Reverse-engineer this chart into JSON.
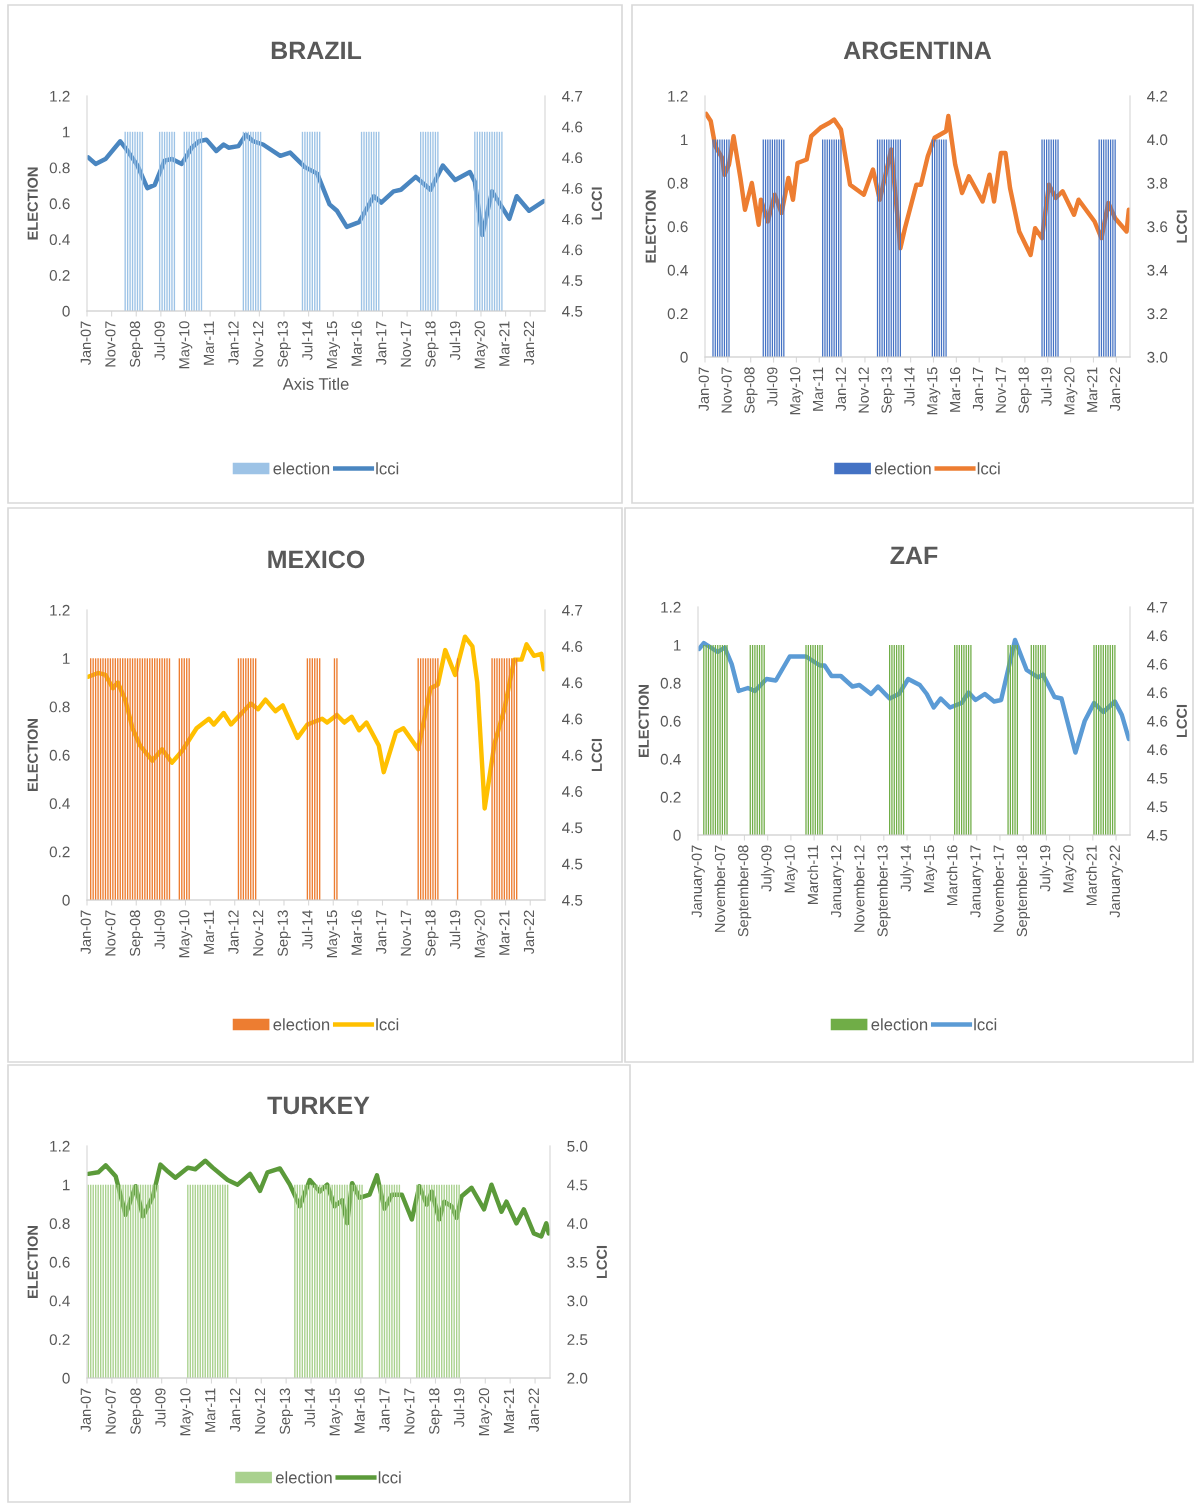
{
  "chart_data": [
    {
      "type": "bar",
      "title": "BRAZIL",
      "xlabel": "Axis Title",
      "ylabel": "ELECTION",
      "y2label": "LCCI",
      "legend": "bottom",
      "xlim": [
        "2007-01",
        "2022-07"
      ],
      "xticks": [
        {
          "value": "2007-01",
          "label": "Jan-07"
        },
        {
          "value": "2007-11",
          "label": "Nov-07"
        },
        {
          "value": "2008-09",
          "label": "Sep-08"
        },
        {
          "value": "2009-07",
          "label": "Jul-09"
        },
        {
          "value": "2010-05",
          "label": "May-10"
        },
        {
          "value": "2011-03",
          "label": "Mar-11"
        },
        {
          "value": "2012-01",
          "label": "Jan-12"
        },
        {
          "value": "2012-11",
          "label": "Nov-12"
        },
        {
          "value": "2013-09",
          "label": "Sep-13"
        },
        {
          "value": "2014-07",
          "label": "Jul-14"
        },
        {
          "value": "2015-05",
          "label": "May-15"
        },
        {
          "value": "2016-03",
          "label": "Mar-16"
        },
        {
          "value": "2017-01",
          "label": "Jan-17"
        },
        {
          "value": "2017-11",
          "label": "Nov-17"
        },
        {
          "value": "2018-09",
          "label": "Sep-18"
        },
        {
          "value": "2019-07",
          "label": "Jul-19"
        },
        {
          "value": "2020-05",
          "label": "May-20"
        },
        {
          "value": "2021-03",
          "label": "Mar-21"
        },
        {
          "value": "2022-01",
          "label": "Jan-22"
        }
      ],
      "ylim": [
        0,
        1.2
      ],
      "yticks": [
        0,
        0.2,
        0.4,
        0.6,
        0.8,
        1,
        1.2
      ],
      "y2lim": [
        4.52,
        4.653
      ],
      "y2ticks": [
        {
          "value": 4.52,
          "label": "4.5"
        },
        {
          "value": 4.539,
          "label": "4.5"
        },
        {
          "value": 4.558,
          "label": "4.6"
        },
        {
          "value": 4.577,
          "label": "4.6"
        },
        {
          "value": 4.596,
          "label": "4.6"
        },
        {
          "value": 4.615,
          "label": "4.6"
        },
        {
          "value": 4.634,
          "label": "4.6"
        },
        {
          "value": 4.653,
          "label": "4.7"
        }
      ],
      "series": [
        {
          "name": "election",
          "color": "#9dc3e6",
          "x": [
            "2008-04",
            "2008-05",
            "2008-06",
            "2008-07",
            "2008-08",
            "2008-09",
            "2008-10",
            "2008-11",
            "2009-06",
            "2009-07",
            "2009-08",
            "2009-09",
            "2009-10",
            "2009-11",
            "2009-12",
            "2010-04",
            "2010-05",
            "2010-06",
            "2010-07",
            "2010-08",
            "2010-09",
            "2010-10",
            "2010-11",
            "2012-04",
            "2012-05",
            "2012-06",
            "2012-07",
            "2012-08",
            "2012-09",
            "2012-10",
            "2012-11",
            "2014-04",
            "2014-05",
            "2014-06",
            "2014-07",
            "2014-08",
            "2014-09",
            "2014-10",
            "2014-11",
            "2016-04",
            "2016-05",
            "2016-06",
            "2016-07",
            "2016-08",
            "2016-09",
            "2016-10",
            "2016-11",
            "2018-04",
            "2018-05",
            "2018-06",
            "2018-07",
            "2018-08",
            "2018-09",
            "2018-10",
            "2018-11",
            "2020-02",
            "2020-03",
            "2020-04",
            "2020-05",
            "2020-06",
            "2020-07",
            "2020-08",
            "2020-09",
            "2020-10",
            "2020-11",
            "2020-12",
            "2021-01"
          ],
          "values": [
            1,
            1,
            1,
            1,
            1,
            1,
            1,
            1,
            1,
            1,
            1,
            1,
            1,
            1,
            1,
            1,
            1,
            1,
            1,
            1,
            1,
            1,
            1,
            1,
            1,
            1,
            1,
            1,
            1,
            1,
            1,
            1,
            1,
            1,
            1,
            1,
            1,
            1,
            1,
            1,
            1,
            1,
            1,
            1,
            1,
            1,
            1,
            1,
            1,
            1,
            1,
            1,
            1,
            1,
            1,
            1,
            1,
            1,
            1,
            1,
            1,
            1,
            1,
            1,
            1,
            1,
            1
          ]
        },
        {
          "name": "lcci",
          "type": "line",
          "axis": "y2",
          "color": "#4a86c0",
          "x": [
            "2007-01",
            "2007-04",
            "2007-08",
            "2008-02",
            "2008-05",
            "2008-09",
            "2009-01",
            "2009-04",
            "2009-08",
            "2009-11",
            "2010-03",
            "2010-07",
            "2010-10",
            "2011-01",
            "2011-05",
            "2011-08",
            "2011-10",
            "2012-02",
            "2012-05",
            "2012-08",
            "2012-12",
            "2013-07",
            "2013-11",
            "2014-05",
            "2014-10",
            "2015-03",
            "2015-06",
            "2015-10",
            "2016-03",
            "2016-09",
            "2016-12",
            "2017-05",
            "2017-08",
            "2018-02",
            "2018-08",
            "2019-01",
            "2019-06",
            "2019-12",
            "2020-02",
            "2020-05",
            "2020-09",
            "2021-04",
            "2021-07",
            "2021-12",
            "2022-06"
          ],
          "values": [
            4.615,
            4.611,
            4.614,
            4.625,
            4.619,
            4.61,
            4.596,
            4.598,
            4.613,
            4.614,
            4.611,
            4.621,
            4.625,
            4.626,
            4.619,
            4.623,
            4.621,
            4.622,
            4.629,
            4.625,
            4.623,
            4.616,
            4.618,
            4.609,
            4.605,
            4.586,
            4.582,
            4.572,
            4.575,
            4.591,
            4.587,
            4.594,
            4.595,
            4.603,
            4.595,
            4.61,
            4.601,
            4.606,
            4.6,
            4.567,
            4.594,
            4.577,
            4.591,
            4.582,
            4.588
          ]
        }
      ]
    },
    {
      "type": "bar",
      "title": "ARGENTINA",
      "ylabel": "ELECTION",
      "y2label": "LCCI",
      "legend": "bottom",
      "xlim": [
        "2007-01",
        "2022-07"
      ],
      "xticks": [
        {
          "value": "2007-01",
          "label": "Jan-07"
        },
        {
          "value": "2007-11",
          "label": "Nov-07"
        },
        {
          "value": "2008-09",
          "label": "Sep-08"
        },
        {
          "value": "2009-07",
          "label": "Jul-09"
        },
        {
          "value": "2010-05",
          "label": "May-10"
        },
        {
          "value": "2011-03",
          "label": "Mar-11"
        },
        {
          "value": "2012-01",
          "label": "Jan-12"
        },
        {
          "value": "2012-11",
          "label": "Nov-12"
        },
        {
          "value": "2013-09",
          "label": "Sep-13"
        },
        {
          "value": "2014-07",
          "label": "Jul-14"
        },
        {
          "value": "2015-05",
          "label": "May-15"
        },
        {
          "value": "2016-03",
          "label": "Mar-16"
        },
        {
          "value": "2017-01",
          "label": "Jan-17"
        },
        {
          "value": "2017-11",
          "label": "Nov-17"
        },
        {
          "value": "2018-09",
          "label": "Sep-18"
        },
        {
          "value": "2019-07",
          "label": "Jul-19"
        },
        {
          "value": "2020-05",
          "label": "May-20"
        },
        {
          "value": "2021-03",
          "label": "Mar-21"
        },
        {
          "value": "2022-01",
          "label": "Jan-22"
        }
      ],
      "ylim": [
        0,
        1.2
      ],
      "yticks": [
        0,
        0.2,
        0.4,
        0.6,
        0.8,
        1,
        1.2
      ],
      "y2lim": [
        3.0,
        4.2
      ],
      "y2ticks": [
        {
          "value": 3.0,
          "label": "3.0"
        },
        3.2,
        3.4,
        3.6,
        3.8,
        {
          "value": 4.0,
          "label": "4.0"
        },
        4.2
      ],
      "series": [
        {
          "name": "election",
          "color": "#4472c4",
          "x": [
            "2007-04",
            "2007-05",
            "2007-06",
            "2007-07",
            "2007-08",
            "2007-09",
            "2007-10",
            "2007-11",
            "2009-02",
            "2009-03",
            "2009-04",
            "2009-05",
            "2009-06",
            "2009-07",
            "2009-08",
            "2009-09",
            "2009-10",
            "2009-11",
            "2011-04",
            "2011-05",
            "2011-06",
            "2011-07",
            "2011-08",
            "2011-09",
            "2011-10",
            "2011-11",
            "2011-12",
            "2013-04",
            "2013-05",
            "2013-06",
            "2013-07",
            "2013-08",
            "2013-09",
            "2013-10",
            "2013-11",
            "2013-12",
            "2014-01",
            "2014-02",
            "2015-04",
            "2015-05",
            "2015-06",
            "2015-07",
            "2015-08",
            "2015-09",
            "2015-10",
            "2019-04",
            "2019-05",
            "2019-06",
            "2019-07",
            "2019-08",
            "2019-09",
            "2019-10",
            "2019-11",
            "2021-05",
            "2021-06",
            "2021-07",
            "2021-08",
            "2021-09",
            "2021-10",
            "2021-11",
            "2021-12"
          ],
          "values": [
            1,
            1,
            1,
            1,
            1,
            1,
            1,
            1,
            1,
            1,
            1,
            1,
            1,
            1,
            1,
            1,
            1,
            1,
            1,
            1,
            1,
            1,
            1,
            1,
            1,
            1,
            1,
            1,
            1,
            1,
            1,
            1,
            1,
            1,
            1,
            1,
            1,
            1,
            1,
            1,
            1,
            1,
            1,
            1,
            1,
            1,
            1,
            1,
            1,
            1,
            1,
            1,
            1,
            1,
            1,
            1,
            1,
            1,
            1,
            1,
            1
          ]
        },
        {
          "name": "lcci",
          "type": "line",
          "axis": "y2",
          "color": "#ed7d31",
          "x": [
            "2007-01",
            "2007-03",
            "2007-05",
            "2007-08",
            "2007-09",
            "2007-11",
            "2008-01",
            "2008-04",
            "2008-06",
            "2008-09",
            "2008-12",
            "2009-01",
            "2009-04",
            "2009-07",
            "2009-10",
            "2010-01",
            "2010-03",
            "2010-05",
            "2010-09",
            "2010-11",
            "2011-03",
            "2011-07",
            "2011-09",
            "2011-12",
            "2012-04",
            "2012-10",
            "2013-02",
            "2013-05",
            "2013-10",
            "2014-02",
            "2014-04",
            "2014-09",
            "2014-11",
            "2015-02",
            "2015-05",
            "2015-10",
            "2015-11",
            "2016-02",
            "2016-05",
            "2016-08",
            "2017-02",
            "2017-05",
            "2017-07",
            "2017-10",
            "2017-12",
            "2018-02",
            "2018-06",
            "2018-11",
            "2019-01",
            "2019-04",
            "2019-07",
            "2019-10",
            "2020-01",
            "2020-06",
            "2020-08",
            "2021-03",
            "2021-06",
            "2021-09",
            "2021-12",
            "2022-05",
            "2022-06"
          ],
          "values": [
            4.118,
            4.085,
            3.969,
            3.915,
            3.838,
            3.885,
            4.015,
            3.823,
            3.677,
            3.8,
            3.608,
            3.723,
            3.623,
            3.746,
            3.662,
            3.823,
            3.723,
            3.892,
            3.908,
            4.015,
            4.054,
            4.077,
            4.092,
            4.046,
            3.792,
            3.746,
            3.862,
            3.723,
            3.954,
            3.5,
            3.592,
            3.792,
            3.792,
            3.923,
            4.008,
            4.038,
            4.108,
            3.885,
            3.754,
            3.831,
            3.715,
            3.838,
            3.715,
            3.938,
            3.938,
            3.777,
            3.577,
            3.469,
            3.592,
            3.546,
            3.792,
            3.731,
            3.762,
            3.654,
            3.723,
            3.623,
            3.546,
            3.708,
            3.638,
            3.577,
            3.677
          ]
        }
      ]
    },
    {
      "type": "bar",
      "title": "MEXICO",
      "ylabel": "ELECTION",
      "y2label": "LCCI",
      "legend": "bottom",
      "xlim": [
        "2007-01",
        "2022-07"
      ],
      "xticks": [
        {
          "value": "2007-01",
          "label": "Jan-07"
        },
        {
          "value": "2007-11",
          "label": "Nov-07"
        },
        {
          "value": "2008-09",
          "label": "Sep-08"
        },
        {
          "value": "2009-07",
          "label": "Jul-09"
        },
        {
          "value": "2010-05",
          "label": "May-10"
        },
        {
          "value": "2011-03",
          "label": "Mar-11"
        },
        {
          "value": "2012-01",
          "label": "Jan-12"
        },
        {
          "value": "2012-11",
          "label": "Nov-12"
        },
        {
          "value": "2013-09",
          "label": "Sep-13"
        },
        {
          "value": "2014-07",
          "label": "Jul-14"
        },
        {
          "value": "2015-05",
          "label": "May-15"
        },
        {
          "value": "2016-03",
          "label": "Mar-16"
        },
        {
          "value": "2017-01",
          "label": "Jan-17"
        },
        {
          "value": "2017-11",
          "label": "Nov-17"
        },
        {
          "value": "2018-09",
          "label": "Sep-18"
        },
        {
          "value": "2019-07",
          "label": "Jul-19"
        },
        {
          "value": "2020-05",
          "label": "May-20"
        },
        {
          "value": "2021-03",
          "label": "Mar-21"
        },
        {
          "value": "2022-01",
          "label": "Jan-22"
        }
      ],
      "ylim": [
        0,
        1.2
      ],
      "yticks": [
        0,
        0.2,
        0.4,
        0.6,
        0.8,
        1,
        1.2
      ],
      "y2lim": [
        4.5,
        4.652
      ],
      "y2ticks": [
        {
          "value": 4.5,
          "label": "4.5"
        },
        {
          "value": 4.519,
          "label": "4.5"
        },
        {
          "value": 4.538,
          "label": "4.5"
        },
        {
          "value": 4.557,
          "label": "4.6"
        },
        {
          "value": 4.576,
          "label": "4.6"
        },
        {
          "value": 4.595,
          "label": "4.6"
        },
        {
          "value": 4.614,
          "label": "4.6"
        },
        {
          "value": 4.633,
          "label": "4.6"
        },
        {
          "value": 4.652,
          "label": "4.7"
        }
      ],
      "series": [
        {
          "name": "election",
          "color": "#ed7d31",
          "x": [
            "2007-02",
            "2007-03",
            "2007-04",
            "2007-05",
            "2007-06",
            "2007-07",
            "2007-08",
            "2007-09",
            "2007-10",
            "2007-11",
            "2007-12",
            "2008-01",
            "2008-02",
            "2008-03",
            "2008-04",
            "2008-05",
            "2008-06",
            "2008-07",
            "2008-08",
            "2008-09",
            "2008-10",
            "2008-11",
            "2008-12",
            "2009-01",
            "2009-02",
            "2009-03",
            "2009-04",
            "2009-05",
            "2009-06",
            "2009-07",
            "2009-08",
            "2009-09",
            "2009-10",
            "2010-02",
            "2010-03",
            "2010-04",
            "2010-05",
            "2010-06",
            "2012-02",
            "2012-03",
            "2012-04",
            "2012-05",
            "2012-06",
            "2012-07",
            "2012-08",
            "2012-09",
            "2014-06",
            "2014-07",
            "2014-08",
            "2014-09",
            "2014-10",
            "2014-11",
            "2015-05",
            "2015-06",
            "2018-03",
            "2018-04",
            "2018-05",
            "2018-06",
            "2018-07",
            "2018-08",
            "2018-09",
            "2018-10",
            "2018-11",
            "2019-07",
            "2020-09",
            "2020-10",
            "2020-11",
            "2020-12",
            "2021-01",
            "2021-02",
            "2021-03",
            "2021-04",
            "2021-05",
            "2021-06",
            "2021-07"
          ],
          "values": [
            1,
            1,
            1,
            1,
            1,
            1,
            1,
            1,
            1,
            1,
            1,
            1,
            1,
            1,
            1,
            1,
            1,
            1,
            1,
            1,
            1,
            1,
            1,
            1,
            1,
            1,
            1,
            1,
            1,
            1,
            1,
            1,
            1,
            1,
            1,
            1,
            1,
            1,
            1,
            1,
            1,
            1,
            1,
            1,
            1,
            1,
            1,
            1,
            1,
            1,
            1,
            1,
            1,
            1,
            1,
            1,
            1,
            1,
            1,
            1,
            1,
            1,
            1,
            1,
            1,
            1,
            1,
            1,
            1,
            1,
            1,
            1,
            1,
            1,
            1
          ]
        },
        {
          "name": "lcci",
          "type": "line",
          "axis": "y2",
          "color": "#ffc000",
          "x": [
            "2007-01",
            "2007-05",
            "2007-08",
            "2007-11",
            "2008-01",
            "2008-04",
            "2008-07",
            "2008-10",
            "2009-03",
            "2009-07",
            "2009-11",
            "2010-03",
            "2010-09",
            "2011-02",
            "2011-04",
            "2011-08",
            "2011-11",
            "2012-07",
            "2012-10",
            "2013-01",
            "2013-05",
            "2013-08",
            "2014-02",
            "2014-06",
            "2014-12",
            "2015-02",
            "2015-06",
            "2015-09",
            "2015-12",
            "2016-03",
            "2016-06",
            "2016-11",
            "2017-01",
            "2017-06",
            "2017-09",
            "2018-03",
            "2018-08",
            "2018-11",
            "2019-02",
            "2019-06",
            "2019-10",
            "2020-01",
            "2020-03",
            "2020-06",
            "2020-10",
            "2021-02",
            "2021-06",
            "2021-09",
            "2021-11",
            "2022-02",
            "2022-05",
            "2022-06"
          ],
          "values": [
            4.617,
            4.619,
            4.618,
            4.611,
            4.614,
            4.605,
            4.59,
            4.581,
            4.573,
            4.579,
            4.572,
            4.578,
            4.59,
            4.595,
            4.592,
            4.598,
            4.592,
            4.603,
            4.6,
            4.605,
            4.599,
            4.602,
            4.585,
            4.592,
            4.595,
            4.593,
            4.597,
            4.593,
            4.596,
            4.589,
            4.593,
            4.581,
            4.567,
            4.588,
            4.59,
            4.579,
            4.611,
            4.613,
            4.631,
            4.618,
            4.638,
            4.633,
            4.614,
            4.548,
            4.582,
            4.6,
            4.626,
            4.626,
            4.634,
            4.628,
            4.629,
            4.621
          ]
        }
      ]
    },
    {
      "type": "bar",
      "title": "ZAF",
      "ylabel": "ELECTION",
      "y2label": "LCCI",
      "legend": "bottom",
      "xlim": [
        "2007-01",
        "2022-07"
      ],
      "xticks": [
        {
          "value": "2007-01",
          "label": "January-07"
        },
        {
          "value": "2007-11",
          "label": "November-07"
        },
        {
          "value": "2008-09",
          "label": "September-08"
        },
        {
          "value": "2009-07",
          "label": "July-09"
        },
        {
          "value": "2010-05",
          "label": "May-10"
        },
        {
          "value": "2011-03",
          "label": "March-11"
        },
        {
          "value": "2012-01",
          "label": "January-12"
        },
        {
          "value": "2012-11",
          "label": "November-12"
        },
        {
          "value": "2013-09",
          "label": "September-13"
        },
        {
          "value": "2014-07",
          "label": "July-14"
        },
        {
          "value": "2015-05",
          "label": "May-15"
        },
        {
          "value": "2016-03",
          "label": "March-16"
        },
        {
          "value": "2017-01",
          "label": "January-17"
        },
        {
          "value": "2017-11",
          "label": "November-17"
        },
        {
          "value": "2018-09",
          "label": "September-18"
        },
        {
          "value": "2019-07",
          "label": "July-19"
        },
        {
          "value": "2020-05",
          "label": "May-20"
        },
        {
          "value": "2021-03",
          "label": "March-21"
        },
        {
          "value": "2022-01",
          "label": "January-22"
        }
      ],
      "ylim": [
        0,
        1.2
      ],
      "yticks": [
        0,
        0.2,
        0.4,
        0.6,
        0.8,
        1,
        1.2
      ],
      "y2lim": [
        4.5,
        4.652
      ],
      "y2ticks": [
        {
          "value": 4.5,
          "label": "4.5"
        },
        {
          "value": 4.519,
          "label": "4.5"
        },
        {
          "value": 4.538,
          "label": "4.5"
        },
        {
          "value": 4.557,
          "label": "4.6"
        },
        {
          "value": 4.576,
          "label": "4.6"
        },
        {
          "value": 4.595,
          "label": "4.6"
        },
        {
          "value": 4.614,
          "label": "4.6"
        },
        {
          "value": 4.633,
          "label": "4.6"
        },
        {
          "value": 4.652,
          "label": "4.7"
        }
      ],
      "series": [
        {
          "name": "election",
          "color": "#70ad47",
          "x": [
            "2007-03",
            "2007-04",
            "2007-05",
            "2007-06",
            "2007-07",
            "2007-08",
            "2007-09",
            "2007-10",
            "2007-11",
            "2007-12",
            "2008-01",
            "2008-11",
            "2008-12",
            "2009-01",
            "2009-02",
            "2009-03",
            "2009-04",
            "2009-05",
            "2010-11",
            "2010-12",
            "2011-01",
            "2011-02",
            "2011-03",
            "2011-04",
            "2011-05",
            "2011-06",
            "2013-11",
            "2013-12",
            "2014-01",
            "2014-02",
            "2014-03",
            "2014-04",
            "2014-05",
            "2016-03",
            "2016-04",
            "2016-05",
            "2016-06",
            "2016-07",
            "2016-08",
            "2016-09",
            "2016-10",
            "2018-02",
            "2018-03",
            "2018-04",
            "2018-05",
            "2018-06",
            "2018-12",
            "2019-01",
            "2019-02",
            "2019-03",
            "2019-04",
            "2019-05",
            "2019-06",
            "2021-03",
            "2021-04",
            "2021-05",
            "2021-06",
            "2021-07",
            "2021-08",
            "2021-09",
            "2021-10",
            "2021-11",
            "2021-12"
          ],
          "values": [
            1,
            1,
            1,
            1,
            1,
            1,
            1,
            1,
            1,
            1,
            1,
            1,
            1,
            1,
            1,
            1,
            1,
            1,
            1,
            1,
            1,
            1,
            1,
            1,
            1,
            1,
            1,
            1,
            1,
            1,
            1,
            1,
            1,
            1,
            1,
            1,
            1,
            1,
            1,
            1,
            1,
            1,
            1,
            1,
            1,
            1,
            1,
            1,
            1,
            1,
            1,
            1,
            1,
            1,
            1,
            1,
            1,
            1,
            1,
            1,
            1,
            1,
            1
          ]
        },
        {
          "name": "lcci",
          "type": "line",
          "axis": "y2",
          "color": "#5b9bd5",
          "x": [
            "2007-01",
            "2007-03",
            "2007-09",
            "2007-12",
            "2008-03",
            "2008-06",
            "2008-10",
            "2009-01",
            "2009-06",
            "2009-10",
            "2010-04",
            "2010-11",
            "2011-05",
            "2011-07",
            "2011-10",
            "2012-02",
            "2012-07",
            "2012-10",
            "2013-03",
            "2013-06",
            "2013-11",
            "2014-03",
            "2014-07",
            "2014-12",
            "2015-03",
            "2015-06",
            "2015-09",
            "2016-01",
            "2016-06",
            "2016-09",
            "2016-12",
            "2017-04",
            "2017-08",
            "2017-11",
            "2018-05",
            "2018-10",
            "2019-03",
            "2019-05",
            "2019-10",
            "2020-01",
            "2020-07",
            "2020-11",
            "2021-03",
            "2021-07",
            "2021-12",
            "2022-03",
            "2022-06"
          ],
          "values": [
            4.624,
            4.628,
            4.622,
            4.625,
            4.614,
            4.596,
            4.598,
            4.596,
            4.604,
            4.603,
            4.619,
            4.619,
            4.613,
            4.613,
            4.606,
            4.606,
            4.599,
            4.6,
            4.594,
            4.599,
            4.591,
            4.594,
            4.604,
            4.6,
            4.594,
            4.585,
            4.591,
            4.585,
            4.588,
            4.595,
            4.59,
            4.594,
            4.589,
            4.59,
            4.63,
            4.61,
            4.605,
            4.607,
            4.592,
            4.591,
            4.555,
            4.576,
            4.588,
            4.582,
            4.589,
            4.58,
            4.564
          ]
        }
      ]
    },
    {
      "type": "bar",
      "title": "TURKEY",
      "ylabel": "ELECTION",
      "y2label": "LCCI",
      "legend": "bottom",
      "xlim": [
        "2007-01",
        "2022-07"
      ],
      "xticks": [
        {
          "value": "2007-01",
          "label": "Jan-07"
        },
        {
          "value": "2007-11",
          "label": "Nov-07"
        },
        {
          "value": "2008-09",
          "label": "Sep-08"
        },
        {
          "value": "2009-07",
          "label": "Jul-09"
        },
        {
          "value": "2010-05",
          "label": "May-10"
        },
        {
          "value": "2011-03",
          "label": "Mar-11"
        },
        {
          "value": "2012-01",
          "label": "Jan-12"
        },
        {
          "value": "2012-11",
          "label": "Nov-12"
        },
        {
          "value": "2013-09",
          "label": "Sep-13"
        },
        {
          "value": "2014-07",
          "label": "Jul-14"
        },
        {
          "value": "2015-05",
          "label": "May-15"
        },
        {
          "value": "2016-03",
          "label": "Mar-16"
        },
        {
          "value": "2017-01",
          "label": "Jan-17"
        },
        {
          "value": "2017-11",
          "label": "Nov-17"
        },
        {
          "value": "2018-09",
          "label": "Sep-18"
        },
        {
          "value": "2019-07",
          "label": "Jul-19"
        },
        {
          "value": "2020-05",
          "label": "May-20"
        },
        {
          "value": "2021-03",
          "label": "Mar-21"
        },
        {
          "value": "2022-01",
          "label": "Jan-22"
        }
      ],
      "ylim": [
        0,
        1.2
      ],
      "yticks": [
        0,
        0.2,
        0.4,
        0.6,
        0.8,
        1,
        1.2
      ],
      "y2lim": [
        2.0,
        5.0
      ],
      "y2ticks": [
        {
          "value": 2.0,
          "label": "2.0"
        },
        2.5,
        {
          "value": 3.0,
          "label": "3.0"
        },
        3.5,
        {
          "value": 4.0,
          "label": "4.0"
        },
        4.5,
        {
          "value": 5.0,
          "label": "5.0"
        }
      ],
      "series": [
        {
          "name": "election",
          "color": "#a9d18e",
          "x": [
            "2007-01",
            "2007-02",
            "2007-03",
            "2007-04",
            "2007-05",
            "2007-06",
            "2007-07",
            "2007-08",
            "2007-09",
            "2007-10",
            "2007-11",
            "2007-12",
            "2008-01",
            "2008-02",
            "2008-03",
            "2008-04",
            "2008-05",
            "2008-06",
            "2008-07",
            "2008-08",
            "2008-09",
            "2008-10",
            "2008-11",
            "2008-12",
            "2009-01",
            "2009-02",
            "2009-03",
            "2009-04",
            "2009-05",
            "2010-05",
            "2010-06",
            "2010-07",
            "2010-08",
            "2010-09",
            "2010-10",
            "2010-11",
            "2010-12",
            "2011-01",
            "2011-02",
            "2011-03",
            "2011-04",
            "2011-05",
            "2011-06",
            "2011-07",
            "2011-08",
            "2011-09",
            "2013-12",
            "2014-01",
            "2014-02",
            "2014-03",
            "2014-04",
            "2014-05",
            "2014-06",
            "2014-07",
            "2014-08",
            "2014-09",
            "2014-10",
            "2014-11",
            "2014-12",
            "2015-01",
            "2015-02",
            "2015-03",
            "2015-04",
            "2015-05",
            "2015-06",
            "2015-07",
            "2015-08",
            "2015-09",
            "2015-10",
            "2015-11",
            "2015-12",
            "2016-01",
            "2016-02",
            "2016-03",
            "2016-10",
            "2016-11",
            "2016-12",
            "2017-01",
            "2017-02",
            "2017-03",
            "2017-04",
            "2017-05",
            "2017-06",
            "2018-01",
            "2018-02",
            "2018-03",
            "2018-04",
            "2018-05",
            "2018-06",
            "2018-07",
            "2018-08",
            "2018-09",
            "2018-10",
            "2018-11",
            "2018-12",
            "2019-01",
            "2019-02",
            "2019-03",
            "2019-04",
            "2019-05",
            "2019-06"
          ],
          "values": [
            1,
            1,
            1,
            1,
            1,
            1,
            1,
            1,
            1,
            1,
            1,
            1,
            1,
            1,
            1,
            1,
            1,
            1,
            1,
            1,
            1,
            1,
            1,
            1,
            1,
            1,
            1,
            1,
            1,
            1,
            1,
            1,
            1,
            1,
            1,
            1,
            1,
            1,
            1,
            1,
            1,
            1,
            1,
            1,
            1,
            1,
            1,
            1,
            1,
            1,
            1,
            1,
            1,
            1,
            1,
            1,
            1,
            1,
            1,
            1,
            1,
            1,
            1,
            1,
            1,
            1,
            1,
            1,
            1,
            1,
            1,
            1,
            1,
            1,
            1,
            1,
            1,
            1,
            1,
            1,
            1,
            1,
            1,
            1,
            1,
            1,
            1,
            1,
            1,
            1,
            1,
            1,
            1,
            1,
            1,
            1,
            1,
            1,
            1,
            1,
            1
          ]
        },
        {
          "name": "lcci",
          "type": "line",
          "axis": "y2",
          "color": "#5b9a3a",
          "x": [
            "2007-01",
            "2007-05",
            "2007-08",
            "2007-12",
            "2008-04",
            "2008-08",
            "2008-11",
            "2009-03",
            "2009-06",
            "2009-09",
            "2009-12",
            "2010-05",
            "2010-08",
            "2010-12",
            "2011-03",
            "2011-09",
            "2012-01",
            "2012-06",
            "2012-10",
            "2013-01",
            "2013-06",
            "2013-10",
            "2014-02",
            "2014-06",
            "2014-10",
            "2015-01",
            "2015-04",
            "2015-07",
            "2015-09",
            "2015-11",
            "2016-02",
            "2016-06",
            "2016-09",
            "2016-12",
            "2017-03",
            "2017-07",
            "2017-11",
            "2018-02",
            "2018-05",
            "2018-07",
            "2018-10",
            "2018-12",
            "2019-03",
            "2019-05",
            "2019-07",
            "2019-11",
            "2020-04",
            "2020-07",
            "2020-11",
            "2021-01",
            "2021-05",
            "2021-08",
            "2021-12",
            "2022-03",
            "2022-05",
            "2022-06"
          ],
          "values": [
            4.64,
            4.66,
            4.75,
            4.61,
            4.11,
            4.48,
            4.09,
            4.35,
            4.76,
            4.67,
            4.59,
            4.72,
            4.7,
            4.81,
            4.72,
            4.56,
            4.5,
            4.64,
            4.42,
            4.66,
            4.71,
            4.5,
            4.22,
            4.56,
            4.41,
            4.5,
            4.22,
            4.3,
            4.0,
            4.52,
            4.33,
            4.37,
            4.62,
            4.19,
            4.37,
            4.37,
            4.05,
            4.48,
            4.24,
            4.41,
            4.05,
            4.28,
            4.22,
            4.07,
            4.35,
            4.46,
            4.18,
            4.5,
            4.15,
            4.28,
            4.0,
            4.18,
            3.87,
            3.83,
            4.0,
            3.87
          ]
        }
      ]
    }
  ]
}
